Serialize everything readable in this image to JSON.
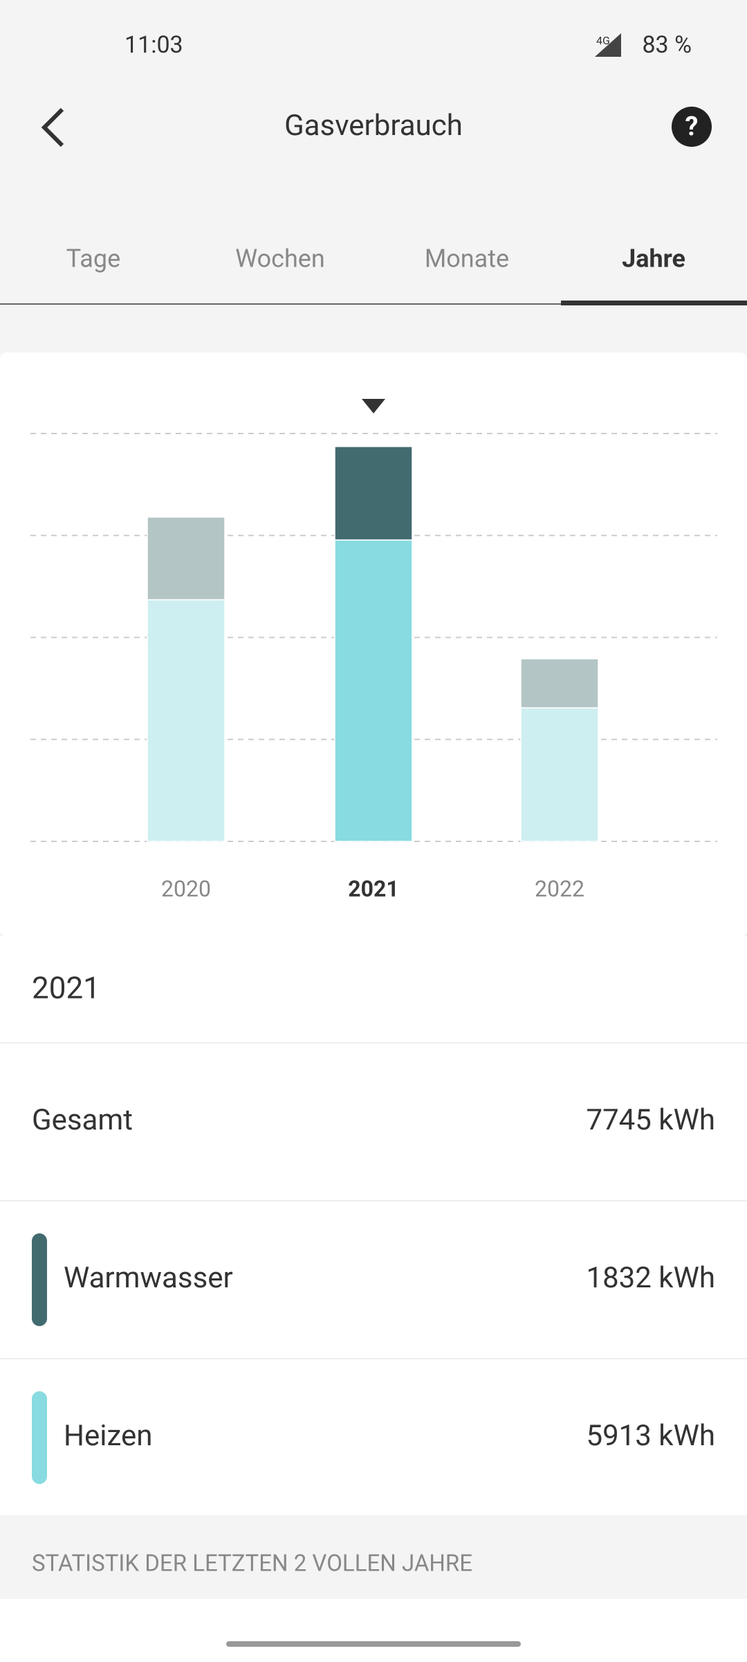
{
  "status_bar": {
    "time": "11:03",
    "network": "4G",
    "battery": "83 %"
  },
  "header": {
    "title": "Gasverbrauch"
  },
  "tabs": [
    "Tage",
    "Wochen",
    "Monate",
    "Jahre"
  ],
  "active_tab": "Jahre",
  "chart_data": {
    "type": "bar",
    "stacked": true,
    "categories": [
      "2020",
      "2021",
      "2022"
    ],
    "series": [
      {
        "name": "Heizen",
        "color": "#88dbe0",
        "faded_color": "#ceeff1",
        "values": [
          4740,
          5913,
          2620
        ]
      },
      {
        "name": "Warmwasser",
        "color": "#426b70",
        "faded_color": "#b3c5c5",
        "values": [
          1620,
          1832,
          960
        ]
      }
    ],
    "ylim": [
      0,
      8000
    ],
    "yticks": [
      0,
      2000,
      4000,
      6000,
      8000
    ],
    "grid": true
  },
  "details": {
    "year": "2021",
    "rows": [
      {
        "label": "Gesamt",
        "value": "7745 kWh"
      },
      {
        "label": "Warmwasser",
        "value": "1832 kWh",
        "color": "#426b70"
      },
      {
        "label": "Heizen",
        "value": "5913 kWh",
        "color": "#88dbe0"
      }
    ]
  },
  "section_title": "STATISTIK DER LETZTEN 2 VOLLEN JAHRE"
}
